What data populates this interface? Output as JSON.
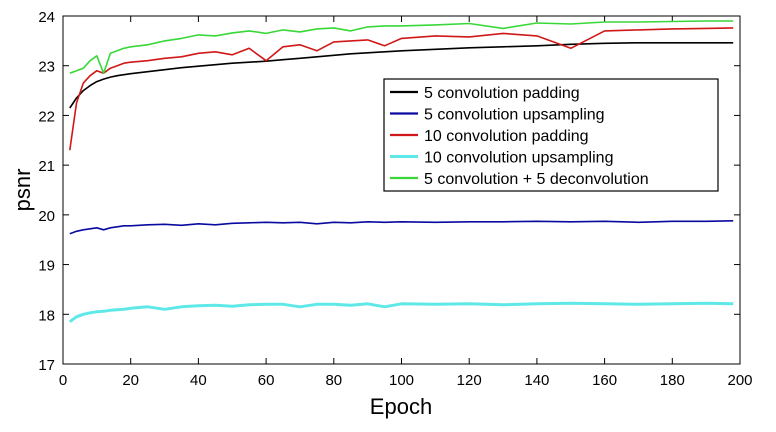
{
  "chart_data": {
    "type": "line",
    "title": "",
    "xlabel": "Epoch",
    "ylabel": "psnr",
    "xlim": [
      0,
      200
    ],
    "ylim": [
      17,
      24
    ],
    "xticks": [
      0,
      20,
      40,
      60,
      80,
      100,
      120,
      140,
      160,
      180,
      200
    ],
    "yticks": [
      17,
      18,
      19,
      20,
      21,
      22,
      23,
      24
    ],
    "grid": false,
    "legend_position": "upper-right",
    "x": [
      2,
      4,
      6,
      8,
      10,
      12,
      14,
      16,
      18,
      20,
      25,
      30,
      35,
      40,
      45,
      50,
      55,
      60,
      65,
      70,
      75,
      80,
      85,
      90,
      95,
      100,
      110,
      120,
      130,
      140,
      150,
      160,
      170,
      180,
      190,
      198
    ],
    "series": [
      {
        "name": "5 convolution padding",
        "color": "#000000",
        "values": [
          22.15,
          22.35,
          22.5,
          22.6,
          22.68,
          22.73,
          22.77,
          22.8,
          22.82,
          22.84,
          22.88,
          22.92,
          22.96,
          22.99,
          23.02,
          23.05,
          23.07,
          23.09,
          23.12,
          23.15,
          23.18,
          23.21,
          23.24,
          23.26,
          23.28,
          23.3,
          23.33,
          23.36,
          23.38,
          23.4,
          23.43,
          23.45,
          23.46,
          23.46,
          23.46,
          23.46
        ]
      },
      {
        "name": "5 convolution upsampling",
        "color": "#0a0aa0",
        "values": [
          19.62,
          19.67,
          19.7,
          19.72,
          19.74,
          19.7,
          19.74,
          19.76,
          19.78,
          19.78,
          19.8,
          19.81,
          19.79,
          19.82,
          19.8,
          19.83,
          19.84,
          19.85,
          19.84,
          19.85,
          19.82,
          19.85,
          19.84,
          19.86,
          19.85,
          19.86,
          19.85,
          19.86,
          19.86,
          19.87,
          19.86,
          19.87,
          19.85,
          19.87,
          19.87,
          19.88
        ]
      },
      {
        "name": "10 convolution padding",
        "color": "#d01818",
        "values": [
          21.3,
          22.25,
          22.65,
          22.8,
          22.9,
          22.85,
          22.95,
          23.0,
          23.05,
          23.07,
          23.1,
          23.15,
          23.18,
          23.25,
          23.28,
          23.22,
          23.35,
          23.1,
          23.38,
          23.42,
          23.3,
          23.48,
          23.5,
          23.52,
          23.4,
          23.55,
          23.6,
          23.58,
          23.65,
          23.6,
          23.35,
          23.7,
          23.72,
          23.74,
          23.75,
          23.76
        ]
      },
      {
        "name": "10 convolution upsampling",
        "color": "#5ee8e8",
        "values": [
          17.85,
          17.95,
          18.0,
          18.03,
          18.05,
          18.06,
          18.08,
          18.09,
          18.1,
          18.12,
          18.15,
          18.1,
          18.15,
          18.17,
          18.18,
          18.16,
          18.19,
          18.2,
          18.2,
          18.15,
          18.2,
          18.2,
          18.18,
          18.21,
          18.15,
          18.21,
          18.2,
          18.21,
          18.19,
          18.21,
          18.22,
          18.21,
          18.2,
          18.21,
          18.22,
          18.21
        ]
      },
      {
        "name": "5 convolution + 5 deconvolution",
        "color": "#38d838",
        "values": [
          22.85,
          22.9,
          22.95,
          23.1,
          23.2,
          22.85,
          23.25,
          23.3,
          23.35,
          23.38,
          23.42,
          23.5,
          23.55,
          23.62,
          23.6,
          23.66,
          23.7,
          23.65,
          23.72,
          23.68,
          23.74,
          23.76,
          23.7,
          23.78,
          23.8,
          23.8,
          23.82,
          23.85,
          23.75,
          23.86,
          23.84,
          23.88,
          23.88,
          23.89,
          23.9,
          23.9
        ]
      }
    ]
  }
}
